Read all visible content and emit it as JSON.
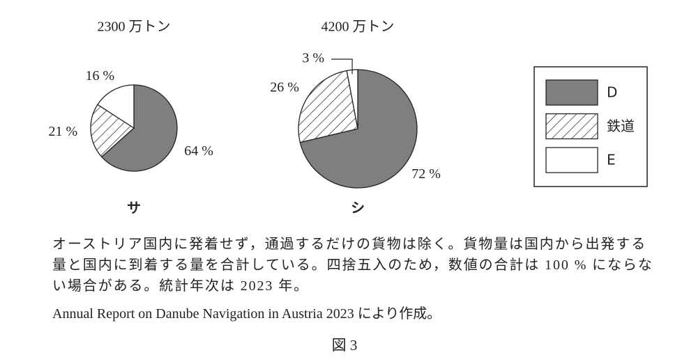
{
  "chart_data": [
    {
      "type": "pie",
      "title": "2300 万トン",
      "label": "サ",
      "categories": [
        "D",
        "鉄道",
        "E"
      ],
      "values": [
        64,
        21,
        16
      ],
      "value_labels": [
        "64 %",
        "21 %",
        "16 %"
      ],
      "colors": [
        "#7f7f7f",
        "#ffffff",
        "#ffffff"
      ],
      "patterns": [
        "solid",
        "hatch",
        "solid"
      ]
    },
    {
      "type": "pie",
      "title": "4200 万トン",
      "label": "シ",
      "categories": [
        "D",
        "鉄道",
        "E"
      ],
      "values": [
        72,
        26,
        3
      ],
      "value_labels": [
        "72 %",
        "26 %",
        "3 %"
      ],
      "colors": [
        "#7f7f7f",
        "#ffffff",
        "#ffffff"
      ],
      "patterns": [
        "solid",
        "hatch",
        "solid"
      ]
    }
  ],
  "note": "オーストリア国内に発着せず，通過するだけの貨物は除く。貨物量は国内から出発する量と国内に到着する量を合計している。四捨五入のため，数値の合計は 100 % にならない場合がある。統計年次は 2023 年。",
  "source": "Annual Report on Danube Navigation in Austria 2023 により作成。",
  "figure_label": "図 3"
}
